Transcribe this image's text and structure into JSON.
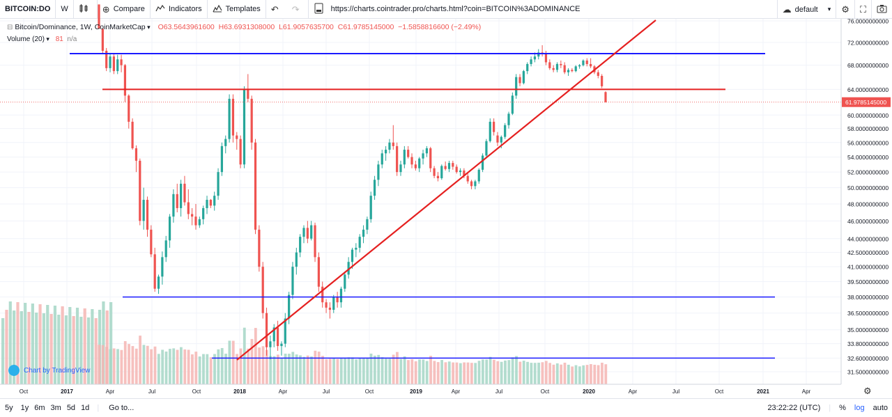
{
  "toolbar": {
    "symbol": "BITCOIN:DO",
    "interval": "W",
    "compare_label": "Compare",
    "indicators_label": "Indicators",
    "templates_label": "Templates",
    "url": "https://charts.cointrader.pro/charts.html?coin=BITCOIN%3ADOMINANCE",
    "layout_label": "default"
  },
  "legend": {
    "title": "Bitcoin/Dominance, 1W, CoinMarketCap",
    "open": "O63.5643961600",
    "high": "H63.6931308000",
    "low": "L61.9057635700",
    "close": "C61.9785145000",
    "change": "−1.5858816600 (−2.49%)",
    "volume_label": "Volume (20)",
    "volume_value": "81",
    "volume_ma": "n/a"
  },
  "watermark": "Chart by TradingView",
  "bottom": {
    "ranges": [
      "5y",
      "1y",
      "6m",
      "3m",
      "5d",
      "1d"
    ],
    "goto_label": "Go to...",
    "time": "23:22:22 (UTC)",
    "percent_label": "%",
    "log_label": "log",
    "auto_label": "auto"
  },
  "colors": {
    "up": "#26a69a",
    "down": "#ef5350",
    "hline_blue": "#1a1aff",
    "trend_red": "#e52020"
  },
  "icons": [
    "candles-icon",
    "compare-icon",
    "indicators-icon",
    "templates-icon",
    "undo-icon",
    "redo-icon",
    "url-icon",
    "cloud-icon",
    "settings-icon",
    "fullscreen-icon",
    "camera-icon",
    "gear-icon"
  ],
  "chart_data": {
    "type": "candlestick",
    "y_axis_ticks": [
      "76.0000000000",
      "72.0000000000",
      "68.0000000000",
      "64.0000000000",
      "60.0000000000",
      "58.0000000000",
      "56.0000000000",
      "54.0000000000",
      "52.0000000000",
      "50.0000000000",
      "48.0000000000",
      "46.0000000000",
      "44.0000000000",
      "42.5000000000",
      "41.0000000000",
      "39.5000000000",
      "38.0000000000",
      "36.5000000000",
      "35.0000000000",
      "33.8000000000",
      "32.6000000000",
      "31.5000000000"
    ],
    "x_axis_ticks": [
      "Oct",
      "2017",
      "Apr",
      "Jul",
      "Oct",
      "2018",
      "Apr",
      "Jul",
      "Oct",
      "2019",
      "Apr",
      "Jul",
      "Oct",
      "2020",
      "Apr",
      "Jul",
      "Oct",
      "2021",
      "Apr"
    ],
    "last_price_label": "61.9785145000",
    "y_scale": "log",
    "candles": [
      [
        79.2,
        79.2,
        74.5,
        74.5
      ],
      [
        74.5,
        74.6,
        70.0,
        70.5
      ],
      [
        70.5,
        71.0,
        67.0,
        67.5
      ],
      [
        67.5,
        70.0,
        66.8,
        69.5
      ],
      [
        69.5,
        70.0,
        66.5,
        67.0
      ],
      [
        67.0,
        69.8,
        66.5,
        69.0
      ],
      [
        69.0,
        69.8,
        66.8,
        68.0
      ],
      [
        68.0,
        68.2,
        62.0,
        63.0
      ],
      [
        63.0,
        63.2,
        58.0,
        59.0
      ],
      [
        59.0,
        59.5,
        55.0,
        55.2
      ],
      [
        55.2,
        55.6,
        52.0,
        53.5
      ],
      [
        53.5,
        53.8,
        45.5,
        46.0
      ],
      [
        46.0,
        50.0,
        45.0,
        48.5
      ],
      [
        48.5,
        48.9,
        44.2,
        45.0
      ],
      [
        45.0,
        45.5,
        42.0,
        42.3
      ],
      [
        42.3,
        43.0,
        38.5,
        38.8
      ],
      [
        38.8,
        40.2,
        38.3,
        40.0
      ],
      [
        40.0,
        42.6,
        39.2,
        42.0
      ],
      [
        42.0,
        44.3,
        41.5,
        43.8
      ],
      [
        43.8,
        46.8,
        43.0,
        46.5
      ],
      [
        46.5,
        49.8,
        45.8,
        49.2
      ],
      [
        49.2,
        50.5,
        47.0,
        47.5
      ],
      [
        47.5,
        51.0,
        46.5,
        50.5
      ],
      [
        50.5,
        51.5,
        47.8,
        48.2
      ],
      [
        48.2,
        49.8,
        46.2,
        46.8
      ],
      [
        46.8,
        47.5,
        45.5,
        46.5
      ],
      [
        46.5,
        48.0,
        45.0,
        45.5
      ],
      [
        45.5,
        46.5,
        45.2,
        46.2
      ],
      [
        46.2,
        47.8,
        45.6,
        47.5
      ],
      [
        47.5,
        49.0,
        46.8,
        48.5
      ],
      [
        48.5,
        48.6,
        47.5,
        47.8
      ],
      [
        47.8,
        49.5,
        47.2,
        49.0
      ],
      [
        49.0,
        52.5,
        48.5,
        52.0
      ],
      [
        52.0,
        56.0,
        51.5,
        55.5
      ],
      [
        55.5,
        57.0,
        54.5,
        56.5
      ],
      [
        56.5,
        63.2,
        56.0,
        62.5
      ],
      [
        62.5,
        63.2,
        56.0,
        57.0
      ],
      [
        57.0,
        57.5,
        55.0,
        56.5
      ],
      [
        56.5,
        57.0,
        52.5,
        53.0
      ],
      [
        53.0,
        64.5,
        52.5,
        64.0
      ],
      [
        64.0,
        66.5,
        62.0,
        62.5
      ],
      [
        62.5,
        63.0,
        55.0,
        56.0
      ],
      [
        56.0,
        56.5,
        44.5,
        45.0
      ],
      [
        45.0,
        45.5,
        40.5,
        41.0
      ],
      [
        41.0,
        41.5,
        36.0,
        36.5
      ],
      [
        36.5,
        37.0,
        32.8,
        33.5
      ],
      [
        33.5,
        34.5,
        32.5,
        34.0
      ],
      [
        34.0,
        35.5,
        33.5,
        35.2
      ],
      [
        35.2,
        35.8,
        33.2,
        33.6
      ],
      [
        33.6,
        34.0,
        32.8,
        33.8
      ],
      [
        33.8,
        36.5,
        33.5,
        36.0
      ],
      [
        36.0,
        38.5,
        35.5,
        38.2
      ],
      [
        38.2,
        41.5,
        37.8,
        41.0
      ],
      [
        41.0,
        43.0,
        40.2,
        42.5
      ],
      [
        42.5,
        44.5,
        42.0,
        44.2
      ],
      [
        44.2,
        45.5,
        43.5,
        45.2
      ],
      [
        45.2,
        46.0,
        43.5,
        44.0
      ],
      [
        44.0,
        46.0,
        43.8,
        45.5
      ],
      [
        45.5,
        45.8,
        41.5,
        42.0
      ],
      [
        42.0,
        42.5,
        38.5,
        39.0
      ],
      [
        39.0,
        39.5,
        37.0,
        37.5
      ],
      [
        37.5,
        37.8,
        36.5,
        37.0
      ],
      [
        37.0,
        37.5,
        36.0,
        36.8
      ],
      [
        36.8,
        38.2,
        36.5,
        38.0
      ],
      [
        38.0,
        38.5,
        37.0,
        37.5
      ],
      [
        37.5,
        39.0,
        37.0,
        38.8
      ],
      [
        38.8,
        40.5,
        38.5,
        40.2
      ],
      [
        40.2,
        42.0,
        39.8,
        41.5
      ],
      [
        41.5,
        43.0,
        40.8,
        42.8
      ],
      [
        42.8,
        43.5,
        42.0,
        43.0
      ],
      [
        43.0,
        44.5,
        42.5,
        44.2
      ],
      [
        44.2,
        45.5,
        43.5,
        45.0
      ],
      [
        45.0,
        46.5,
        44.5,
        46.2
      ],
      [
        46.2,
        49.5,
        45.8,
        49.0
      ],
      [
        49.0,
        51.5,
        48.5,
        51.0
      ],
      [
        51.0,
        53.5,
        50.2,
        53.0
      ],
      [
        53.0,
        55.0,
        52.5,
        54.5
      ],
      [
        54.5,
        55.5,
        53.5,
        55.0
      ],
      [
        55.0,
        56.5,
        54.5,
        56.0
      ],
      [
        56.0,
        58.5,
        55.0,
        55.5
      ],
      [
        55.5,
        56.0,
        51.5,
        52.0
      ],
      [
        52.0,
        53.5,
        51.5,
        53.0
      ],
      [
        53.0,
        55.5,
        52.5,
        55.0
      ],
      [
        55.0,
        55.5,
        53.8,
        54.0
      ],
      [
        54.0,
        54.5,
        52.5,
        53.0
      ],
      [
        53.0,
        53.5,
        52.2,
        52.5
      ],
      [
        52.5,
        54.0,
        52.0,
        53.8
      ],
      [
        53.8,
        55.0,
        53.0,
        54.5
      ],
      [
        54.5,
        55.5,
        54.0,
        55.2
      ],
      [
        55.2,
        55.4,
        52.0,
        52.5
      ],
      [
        52.5,
        52.8,
        51.2,
        51.5
      ],
      [
        51.5,
        52.0,
        50.8,
        51.2
      ],
      [
        51.2,
        53.0,
        51.0,
        52.8
      ],
      [
        52.8,
        53.4,
        52.2,
        52.4
      ],
      [
        52.4,
        53.5,
        52.0,
        53.2
      ],
      [
        53.2,
        53.5,
        52.3,
        52.7
      ],
      [
        52.7,
        53.0,
        51.8,
        52.0
      ],
      [
        52.0,
        52.5,
        51.5,
        52.2
      ],
      [
        52.2,
        52.5,
        51.2,
        51.5
      ],
      [
        51.5,
        51.8,
        50.5,
        50.8
      ],
      [
        50.8,
        51.0,
        49.8,
        50.2
      ],
      [
        50.2,
        51.0,
        49.8,
        50.8
      ],
      [
        50.8,
        52.5,
        50.5,
        52.3
      ],
      [
        52.3,
        54.5,
        52.0,
        54.2
      ],
      [
        54.2,
        56.5,
        54.0,
        56.2
      ],
      [
        56.2,
        59.5,
        56.0,
        59.0
      ],
      [
        59.0,
        59.5,
        57.0,
        57.5
      ],
      [
        57.0,
        57.5,
        55.5,
        56.0
      ],
      [
        56.0,
        57.0,
        55.2,
        56.8
      ],
      [
        56.8,
        58.8,
        56.5,
        58.5
      ],
      [
        58.5,
        60.5,
        58.0,
        60.2
      ],
      [
        60.2,
        63.5,
        60.0,
        63.0
      ],
      [
        63.0,
        66.5,
        62.5,
        66.0
      ],
      [
        66.0,
        66.5,
        64.5,
        65.0
      ],
      [
        65.0,
        67.2,
        64.8,
        67.0
      ],
      [
        67.0,
        68.5,
        66.5,
        68.2
      ],
      [
        68.2,
        69.5,
        67.8,
        69.0
      ],
      [
        69.0,
        70.2,
        68.5,
        69.5
      ],
      [
        69.5,
        70.8,
        69.0,
        70.2
      ],
      [
        70.2,
        71.5,
        69.5,
        70.0
      ],
      [
        70.0,
        70.5,
        68.0,
        68.5
      ],
      [
        68.5,
        69.0,
        67.2,
        67.5
      ],
      [
        67.5,
        68.0,
        66.8,
        67.2
      ],
      [
        67.2,
        68.5,
        66.8,
        68.2
      ],
      [
        68.2,
        68.8,
        67.5,
        68.0
      ],
      [
        68.0,
        68.5,
        66.5,
        66.8
      ],
      [
        66.8,
        67.5,
        66.2,
        67.2
      ],
      [
        67.2,
        67.5,
        66.8,
        67.0
      ],
      [
        67.0,
        68.0,
        66.8,
        67.8
      ],
      [
        67.8,
        68.2,
        67.4,
        68.0
      ],
      [
        68.0,
        69.0,
        67.8,
        68.8
      ],
      [
        68.8,
        69.2,
        67.8,
        68.2
      ],
      [
        68.2,
        69.2,
        67.5,
        67.8
      ],
      [
        67.8,
        68.0,
        66.5,
        66.8
      ],
      [
        66.8,
        67.2,
        65.8,
        66.2
      ],
      [
        66.2,
        66.5,
        64.2,
        64.5
      ],
      [
        63.56,
        63.69,
        61.91,
        61.98
      ]
    ],
    "horizontal_lines": [
      70.0,
      64.0,
      38.0,
      32.6
    ],
    "trendline": {
      "from": [
        "2018-01",
        32.5
      ],
      "to": [
        "2020-04",
        76.0
      ]
    }
  }
}
